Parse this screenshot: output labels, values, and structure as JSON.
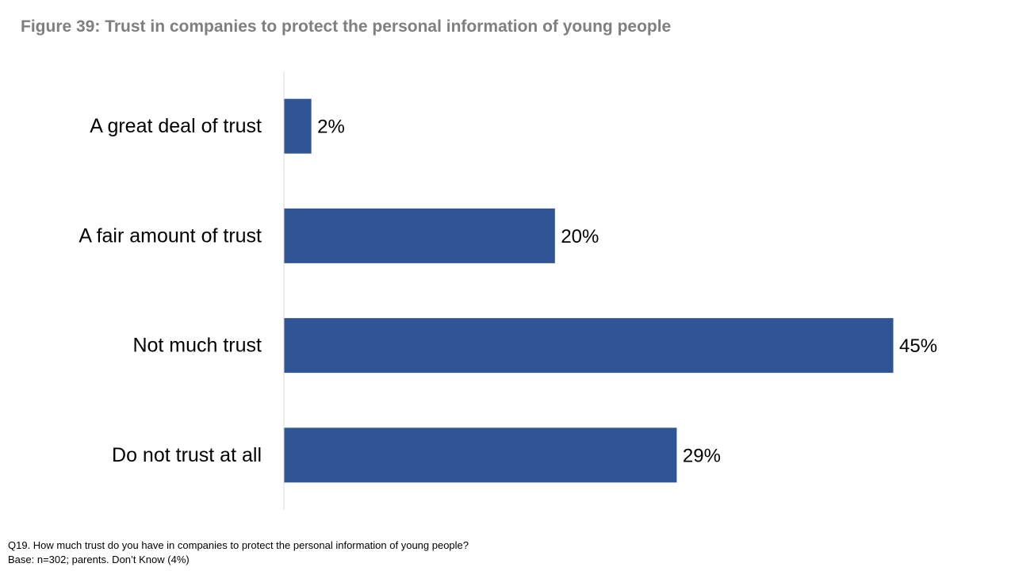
{
  "title": "Figure 39: Trust in companies to protect the personal information of young people",
  "footnotes": {
    "question": "Q19. How much trust do you have in companies to protect the personal information of young people?",
    "base": "Base: n=302; parents. Don’t Know (4%)"
  },
  "colors": {
    "bar": "#2f5597",
    "axis": "#d9d9d9",
    "title": "#7f7f7f"
  },
  "chart_data": {
    "type": "bar",
    "orientation": "horizontal",
    "categories": [
      "A great deal of trust",
      "A fair amount of trust",
      "Not much trust",
      "Do not trust at all"
    ],
    "values": [
      2,
      20,
      45,
      29
    ],
    "data_labels": [
      "2%",
      "20%",
      "45%",
      "29%"
    ],
    "unit": "%",
    "xlim": [
      0,
      50
    ],
    "grid": false,
    "legend": "none"
  }
}
